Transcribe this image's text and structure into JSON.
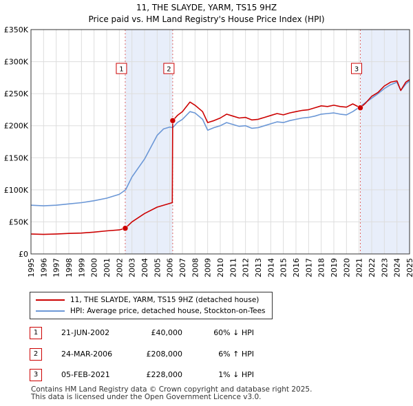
{
  "title_line1": "11, THE SLAYDE, YARM, TS15 9HZ",
  "title_line2": "Price paid vs. HM Land Registry's House Price Index (HPI)",
  "colors": {
    "property": "#cc0000",
    "hpi": "#6b97d6",
    "shade": "#e8eefa",
    "grid": "#dddddd"
  },
  "legend": {
    "property_label": "11, THE SLAYDE, YARM, TS15 9HZ (detached house)",
    "hpi_label": "HPI: Average price, detached house, Stockton-on-Tees"
  },
  "sales": [
    {
      "num": "1",
      "date": "21-JUN-2002",
      "price": "£40,000",
      "hpi": "60% ↓ HPI"
    },
    {
      "num": "2",
      "date": "24-MAR-2006",
      "price": "£208,000",
      "hpi": "6% ↑ HPI"
    },
    {
      "num": "3",
      "date": "05-FEB-2021",
      "price": "£228,000",
      "hpi": "1% ↓ HPI"
    }
  ],
  "footer": {
    "line1": "Contains HM Land Registry data © Crown copyright and database right 2025.",
    "line2": "This data is licensed under the Open Government Licence v3.0."
  },
  "chart_data": {
    "type": "line",
    "title": "11, THE SLAYDE, YARM, TS15 9HZ — Price paid vs. HM Land Registry's House Price Index (HPI)",
    "xlabel": "",
    "ylabel": "",
    "xlim": [
      1995,
      2025
    ],
    "ylim": [
      0,
      350000
    ],
    "x_ticks": [
      1995,
      1996,
      1997,
      1998,
      1999,
      2000,
      2001,
      2002,
      2003,
      2004,
      2005,
      2006,
      2007,
      2008,
      2009,
      2010,
      2011,
      2012,
      2013,
      2014,
      2015,
      2016,
      2017,
      2018,
      2019,
      2020,
      2021,
      2022,
      2023,
      2024,
      2025
    ],
    "y_ticks": [
      {
        "value": 0,
        "label": "£0"
      },
      {
        "value": 50000,
        "label": "£50K"
      },
      {
        "value": 100000,
        "label": "£100K"
      },
      {
        "value": 150000,
        "label": "£150K"
      },
      {
        "value": 200000,
        "label": "£200K"
      },
      {
        "value": 250000,
        "label": "£250K"
      },
      {
        "value": 300000,
        "label": "£300K"
      },
      {
        "value": 350000,
        "label": "£350K"
      }
    ],
    "shaded_periods": [
      [
        2002.47,
        2006.23
      ],
      [
        2021.1,
        2025
      ]
    ],
    "markers": [
      {
        "label": "1",
        "x": 2002.47,
        "y": 40000
      },
      {
        "label": "2",
        "x": 2006.23,
        "y": 208000
      },
      {
        "label": "3",
        "x": 2021.1,
        "y": 228000
      }
    ],
    "series": [
      {
        "name": "11, THE SLAYDE, YARM, TS15 9HZ (detached house)",
        "points": [
          [
            1995,
            31000
          ],
          [
            1996,
            30500
          ],
          [
            1997,
            31000
          ],
          [
            1998,
            32000
          ],
          [
            1999,
            32500
          ],
          [
            2000,
            34000
          ],
          [
            2001,
            36000
          ],
          [
            2002,
            37500
          ],
          [
            2002.47,
            40000
          ],
          [
            2003,
            50000
          ],
          [
            2004,
            63000
          ],
          [
            2005,
            73000
          ],
          [
            2006.2,
            80000
          ],
          [
            2006.23,
            208000
          ],
          [
            2006.6,
            216000
          ],
          [
            2007,
            222000
          ],
          [
            2007.6,
            237000
          ],
          [
            2008,
            232000
          ],
          [
            2008.6,
            222000
          ],
          [
            2009,
            205000
          ],
          [
            2009.5,
            208000
          ],
          [
            2010,
            212000
          ],
          [
            2010.5,
            218000
          ],
          [
            2011,
            215000
          ],
          [
            2011.5,
            212000
          ],
          [
            2012,
            213000
          ],
          [
            2012.5,
            209000
          ],
          [
            2013,
            210000
          ],
          [
            2013.5,
            213000
          ],
          [
            2014,
            216000
          ],
          [
            2014.5,
            219000
          ],
          [
            2015,
            217000
          ],
          [
            2015.5,
            220000
          ],
          [
            2016,
            222000
          ],
          [
            2016.5,
            224000
          ],
          [
            2017,
            225000
          ],
          [
            2017.5,
            228000
          ],
          [
            2018,
            231000
          ],
          [
            2018.5,
            230000
          ],
          [
            2019,
            232000
          ],
          [
            2019.5,
            230000
          ],
          [
            2020,
            229000
          ],
          [
            2020.5,
            234000
          ],
          [
            2021.1,
            228000
          ],
          [
            2021.5,
            235000
          ],
          [
            2022,
            246000
          ],
          [
            2022.5,
            252000
          ],
          [
            2023,
            262000
          ],
          [
            2023.5,
            268000
          ],
          [
            2024,
            270000
          ],
          [
            2024.3,
            255000
          ],
          [
            2024.7,
            268000
          ],
          [
            2025,
            272000
          ]
        ]
      },
      {
        "name": "HPI: Average price, detached house, Stockton-on-Tees",
        "points": [
          [
            1995,
            76000
          ],
          [
            1996,
            75000
          ],
          [
            1997,
            76000
          ],
          [
            1998,
            78000
          ],
          [
            1999,
            80000
          ],
          [
            2000,
            83000
          ],
          [
            2001,
            87000
          ],
          [
            2002,
            93000
          ],
          [
            2002.5,
            100000
          ],
          [
            2003,
            120000
          ],
          [
            2004,
            148000
          ],
          [
            2005,
            185000
          ],
          [
            2005.5,
            195000
          ],
          [
            2006,
            198000
          ],
          [
            2006.23,
            197000
          ],
          [
            2006.6,
            205000
          ],
          [
            2007,
            210000
          ],
          [
            2007.6,
            222000
          ],
          [
            2008,
            220000
          ],
          [
            2008.6,
            210000
          ],
          [
            2009,
            193000
          ],
          [
            2009.5,
            197000
          ],
          [
            2010,
            200000
          ],
          [
            2010.5,
            205000
          ],
          [
            2011,
            202000
          ],
          [
            2011.5,
            199000
          ],
          [
            2012,
            200000
          ],
          [
            2012.5,
            196000
          ],
          [
            2013,
            197000
          ],
          [
            2013.5,
            200000
          ],
          [
            2014,
            203000
          ],
          [
            2014.5,
            206000
          ],
          [
            2015,
            205000
          ],
          [
            2015.5,
            208000
          ],
          [
            2016,
            210000
          ],
          [
            2016.5,
            212000
          ],
          [
            2017,
            213000
          ],
          [
            2017.5,
            215000
          ],
          [
            2018,
            218000
          ],
          [
            2018.5,
            219000
          ],
          [
            2019,
            220000
          ],
          [
            2019.5,
            218000
          ],
          [
            2020,
            217000
          ],
          [
            2020.5,
            222000
          ],
          [
            2021.1,
            230000
          ],
          [
            2021.5,
            236000
          ],
          [
            2022,
            243000
          ],
          [
            2022.5,
            250000
          ],
          [
            2023,
            258000
          ],
          [
            2023.5,
            264000
          ],
          [
            2024,
            268000
          ],
          [
            2024.3,
            255000
          ],
          [
            2024.7,
            265000
          ],
          [
            2025,
            270000
          ]
        ]
      }
    ]
  }
}
